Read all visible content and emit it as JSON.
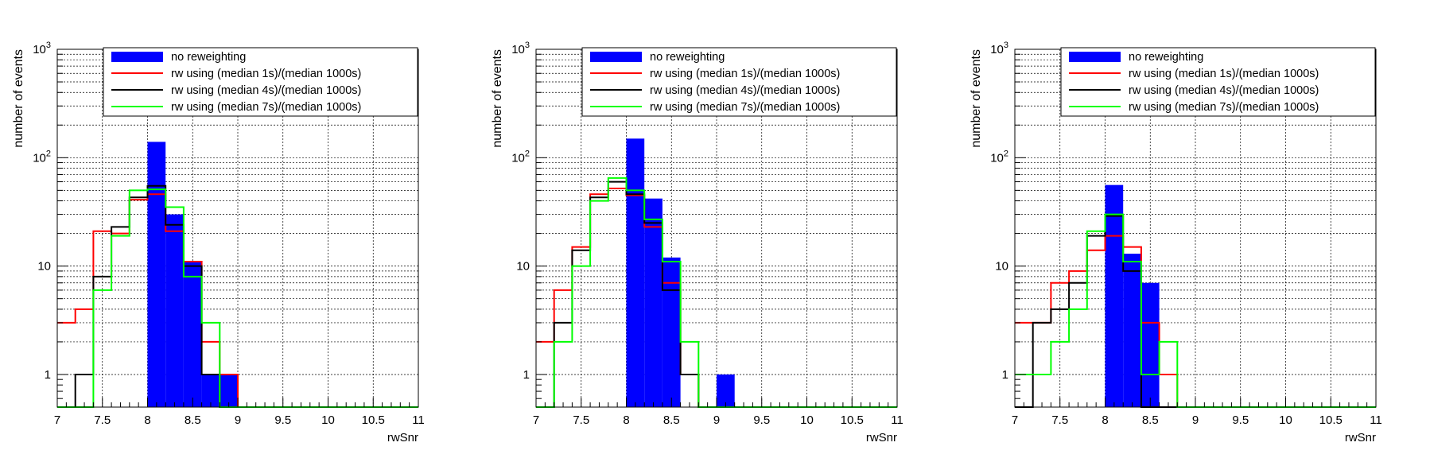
{
  "chart_data": [
    {
      "type": "histogram",
      "xlabel": "rwSnr",
      "ylabel": "number of events",
      "xlim": [
        7,
        11
      ],
      "ylim": [
        0.5,
        1000
      ],
      "yscale": "log",
      "grid": true,
      "legend_position": "top-right",
      "bin_edges": [
        7,
        7.2,
        7.4,
        7.6,
        7.8,
        8,
        8.2,
        8.4,
        8.6,
        8.8,
        9,
        9.2,
        9.4,
        9.6,
        9.8,
        10,
        10.2,
        10.4,
        10.6,
        10.8,
        11
      ],
      "x_ticks": [
        "7",
        "7.5",
        "8",
        "8.5",
        "9",
        "9.5",
        "10",
        "10.5",
        "11"
      ],
      "y_ticks": [
        "1",
        "10",
        "10^2",
        "10^3"
      ],
      "series": [
        {
          "name": "no reweighting",
          "style": "fill",
          "color": "#0000ff",
          "values": [
            0,
            0,
            0,
            0,
            0,
            140,
            30,
            11,
            1,
            1,
            0,
            0,
            0,
            0,
            0,
            0,
            0,
            0,
            0,
            0
          ]
        },
        {
          "name": "rw using (median 1s)/(median 1000s)",
          "style": "step",
          "color": "#ff0000",
          "values": [
            3,
            4,
            21,
            20,
            41,
            46,
            21,
            11,
            2,
            1,
            0,
            0,
            0,
            0,
            0,
            0,
            0,
            0,
            0,
            0
          ]
        },
        {
          "name": "rw using (median 4s)/(median 1000s)",
          "style": "step",
          "color": "#000000",
          "values": [
            0,
            1,
            8,
            23,
            43,
            55,
            24,
            10,
            1,
            0,
            0,
            0,
            0,
            0,
            0,
            0,
            0,
            0,
            0,
            0
          ]
        },
        {
          "name": "rw using (median 7s)/(median 1000s)",
          "style": "step",
          "color": "#00ff00",
          "values": [
            0,
            0,
            6,
            19,
            50,
            51,
            35,
            8,
            3,
            0,
            0,
            0,
            0,
            0,
            0,
            0,
            0,
            0,
            0,
            0
          ]
        }
      ]
    },
    {
      "type": "histogram",
      "xlabel": "rwSnr",
      "ylabel": "number of events",
      "xlim": [
        7,
        11
      ],
      "ylim": [
        0.5,
        1000
      ],
      "yscale": "log",
      "grid": true,
      "legend_position": "top-right",
      "bin_edges": [
        7,
        7.2,
        7.4,
        7.6,
        7.8,
        8,
        8.2,
        8.4,
        8.6,
        8.8,
        9,
        9.2,
        9.4,
        9.6,
        9.8,
        10,
        10.2,
        10.4,
        10.6,
        10.8,
        11
      ],
      "x_ticks": [
        "7",
        "7.5",
        "8",
        "8.5",
        "9",
        "9.5",
        "10",
        "10.5",
        "11"
      ],
      "y_ticks": [
        "1",
        "10",
        "10^2",
        "10^3"
      ],
      "series": [
        {
          "name": "no reweighting",
          "style": "fill",
          "color": "#0000ff",
          "values": [
            0,
            0,
            0,
            0,
            0,
            150,
            42,
            12,
            0,
            0,
            1,
            0,
            0,
            0,
            0,
            0,
            0,
            0,
            0,
            0
          ]
        },
        {
          "name": "rw using (median 1s)/(median 1000s)",
          "style": "step",
          "color": "#ff0000",
          "values": [
            2,
            6,
            15,
            46,
            52,
            45,
            23,
            7,
            1,
            0,
            0,
            0,
            0,
            0,
            0,
            0,
            0,
            0,
            0,
            0
          ]
        },
        {
          "name": "rw using (median 4s)/(median 1000s)",
          "style": "step",
          "color": "#000000",
          "values": [
            0,
            3,
            14,
            43,
            60,
            46,
            25,
            6,
            1,
            0,
            0,
            0,
            0,
            0,
            0,
            0,
            0,
            0,
            0,
            0
          ]
        },
        {
          "name": "rw using (median 7s)/(median 1000s)",
          "style": "step",
          "color": "#00ff00",
          "values": [
            0,
            2,
            10,
            40,
            65,
            50,
            27,
            11,
            2,
            0,
            0,
            0,
            0,
            0,
            0,
            0,
            0,
            0,
            0,
            0
          ]
        }
      ]
    },
    {
      "type": "histogram",
      "xlabel": "rwSnr",
      "ylabel": "number of events",
      "xlim": [
        7,
        11
      ],
      "ylim": [
        0.5,
        1000
      ],
      "yscale": "log",
      "grid": true,
      "legend_position": "top-right",
      "bin_edges": [
        7,
        7.2,
        7.4,
        7.6,
        7.8,
        8,
        8.2,
        8.4,
        8.6,
        8.8,
        9,
        9.2,
        9.4,
        9.6,
        9.8,
        10,
        10.2,
        10.4,
        10.6,
        10.8,
        11
      ],
      "x_ticks": [
        "7",
        "7.5",
        "8",
        "8.5",
        "9",
        "9.5",
        "10",
        "10.5",
        "11"
      ],
      "y_ticks": [
        "1",
        "10",
        "10^2",
        "10^3"
      ],
      "series": [
        {
          "name": "no reweighting",
          "style": "fill",
          "color": "#0000ff",
          "values": [
            0,
            0,
            0,
            0,
            0,
            56,
            13,
            7,
            0,
            0,
            0,
            0,
            0,
            0,
            0,
            0,
            0,
            0,
            0,
            0
          ]
        },
        {
          "name": "rw using (median 1s)/(median 1000s)",
          "style": "step",
          "color": "#ff0000",
          "values": [
            3,
            3,
            7,
            9,
            14,
            19,
            15,
            3,
            1,
            0,
            0,
            0,
            0,
            0,
            0,
            0,
            0,
            0,
            0,
            0
          ]
        },
        {
          "name": "rw using (median 4s)/(median 1000s)",
          "style": "step",
          "color": "#000000",
          "values": [
            0,
            3,
            4,
            7,
            19,
            29,
            9,
            0,
            0,
            0,
            0,
            0,
            0,
            0,
            0,
            0,
            0,
            0,
            0,
            0
          ]
        },
        {
          "name": "rw using (median 7s)/(median 1000s)",
          "style": "step",
          "color": "#00ff00",
          "values": [
            1,
            1,
            2,
            4,
            21,
            30,
            11,
            1,
            2,
            0,
            0,
            0,
            0,
            0,
            0,
            0,
            0,
            0,
            0,
            0
          ]
        }
      ]
    }
  ]
}
